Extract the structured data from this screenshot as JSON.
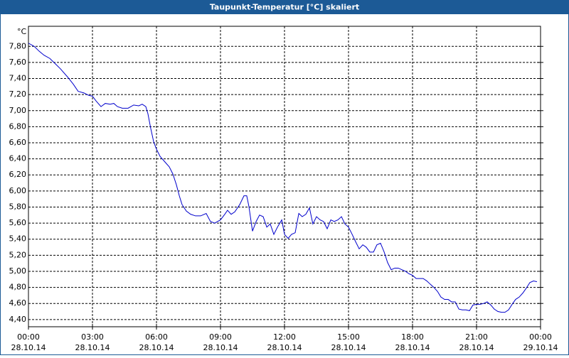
{
  "chart_data": {
    "type": "line",
    "title": "Taupunkt-Temperatur [°C] skaliert",
    "y_unit": "°C",
    "x": [
      0,
      0.27,
      0.5,
      0.73,
      1.0,
      1.27,
      1.5,
      1.83,
      2.1,
      2.33,
      2.6,
      2.83,
      3.0,
      3.17,
      3.4,
      3.6,
      3.83,
      4.0,
      4.17,
      4.4,
      4.67,
      4.93,
      5.17,
      5.33,
      5.5,
      5.6,
      5.73,
      5.87,
      6.0,
      6.17,
      6.4,
      6.6,
      6.77,
      6.93,
      7.07,
      7.2,
      7.4,
      7.6,
      7.83,
      8.07,
      8.33,
      8.53,
      8.73,
      9.0,
      9.2,
      9.33,
      9.5,
      9.67,
      9.9,
      10.1,
      10.23,
      10.33,
      10.5,
      10.67,
      10.83,
      11.0,
      11.17,
      11.33,
      11.5,
      11.67,
      11.87,
      12.0,
      12.17,
      12.33,
      12.5,
      12.67,
      12.83,
      13.0,
      13.17,
      13.33,
      13.5,
      13.67,
      13.83,
      14.0,
      14.17,
      14.33,
      14.5,
      14.67,
      14.83,
      15.0,
      15.17,
      15.33,
      15.5,
      15.67,
      15.83,
      16.0,
      16.17,
      16.33,
      16.5,
      16.67,
      16.83,
      17.0,
      17.17,
      17.33,
      17.5,
      17.67,
      17.83,
      18.0,
      18.17,
      18.33,
      18.5,
      18.67,
      18.83,
      19.0,
      19.17,
      19.33,
      19.5,
      19.67,
      19.83,
      20.0,
      20.17,
      20.33,
      20.5,
      20.67,
      20.83,
      21.0,
      21.17,
      21.33,
      21.5,
      21.67,
      21.83,
      22.0,
      22.17,
      22.33,
      22.5,
      22.67,
      22.83,
      23.0,
      23.17,
      23.33,
      23.5,
      23.67,
      23.83
    ],
    "series": [
      {
        "color": "#0000cc",
        "values": [
          7.84,
          7.8,
          7.74,
          7.69,
          7.65,
          7.58,
          7.52,
          7.42,
          7.33,
          7.24,
          7.22,
          7.19,
          7.18,
          7.12,
          7.05,
          7.09,
          7.08,
          7.09,
          7.05,
          7.03,
          7.03,
          7.07,
          7.06,
          7.08,
          7.05,
          6.96,
          6.78,
          6.61,
          6.52,
          6.43,
          6.36,
          6.3,
          6.21,
          6.08,
          5.94,
          5.83,
          5.75,
          5.71,
          5.69,
          5.69,
          5.72,
          5.62,
          5.6,
          5.64,
          5.71,
          5.76,
          5.71,
          5.74,
          5.83,
          5.94,
          5.94,
          5.81,
          5.5,
          5.62,
          5.7,
          5.68,
          5.55,
          5.59,
          5.46,
          5.55,
          5.64,
          5.46,
          5.41,
          5.46,
          5.48,
          5.72,
          5.68,
          5.71,
          5.79,
          5.59,
          5.68,
          5.64,
          5.62,
          5.53,
          5.64,
          5.62,
          5.64,
          5.68,
          5.59,
          5.55,
          5.46,
          5.37,
          5.28,
          5.33,
          5.3,
          5.24,
          5.24,
          5.33,
          5.35,
          5.24,
          5.11,
          5.02,
          5.04,
          5.04,
          5.02,
          5.0,
          4.97,
          4.95,
          4.91,
          4.91,
          4.91,
          4.88,
          4.84,
          4.8,
          4.75,
          4.68,
          4.65,
          4.65,
          4.62,
          4.62,
          4.53,
          4.52,
          4.52,
          4.51,
          4.58,
          4.59,
          4.59,
          4.6,
          4.62,
          4.58,
          4.53,
          4.5,
          4.49,
          4.49,
          4.52,
          4.59,
          4.65,
          4.68,
          4.73,
          4.79,
          4.86,
          4.88,
          4.87
        ]
      }
    ],
    "xlim": [
      0,
      24
    ],
    "xticks": [
      {
        "value": 0,
        "label": "00:00"
      },
      {
        "value": 3,
        "label": "03:00"
      },
      {
        "value": 6,
        "label": "06:00"
      },
      {
        "value": 9,
        "label": "09:00"
      },
      {
        "value": 12,
        "label": "12:00"
      },
      {
        "value": 15,
        "label": "15:00"
      },
      {
        "value": 18,
        "label": "18:00"
      },
      {
        "value": 21,
        "label": "21:00"
      },
      {
        "value": 24,
        "label": "00:00"
      }
    ],
    "xtick_dates": [
      "28.10.14",
      "28.10.14",
      "28.10.14",
      "28.10.14",
      "28.10.14",
      "28.10.14",
      "28.10.14",
      "28.10.14",
      "29.10.14"
    ],
    "ylim": [
      4.31,
      8.05
    ],
    "yticks": [
      {
        "value": 4.4,
        "label": "4,40"
      },
      {
        "value": 4.6,
        "label": "4,60"
      },
      {
        "value": 4.8,
        "label": "4,80"
      },
      {
        "value": 5.0,
        "label": "5,00"
      },
      {
        "value": 5.2,
        "label": "5,20"
      },
      {
        "value": 5.4,
        "label": "5,40"
      },
      {
        "value": 5.6,
        "label": "5,60"
      },
      {
        "value": 5.8,
        "label": "5,80"
      },
      {
        "value": 6.0,
        "label": "6,00"
      },
      {
        "value": 6.2,
        "label": "6,20"
      },
      {
        "value": 6.4,
        "label": "6,40"
      },
      {
        "value": 6.6,
        "label": "6,60"
      },
      {
        "value": 6.8,
        "label": "6,80"
      },
      {
        "value": 7.0,
        "label": "7,00"
      },
      {
        "value": 7.2,
        "label": "7,20"
      },
      {
        "value": 7.4,
        "label": "7,40"
      },
      {
        "value": 7.6,
        "label": "7,60"
      },
      {
        "value": 7.8,
        "label": "7,80"
      }
    ],
    "grid": true
  }
}
